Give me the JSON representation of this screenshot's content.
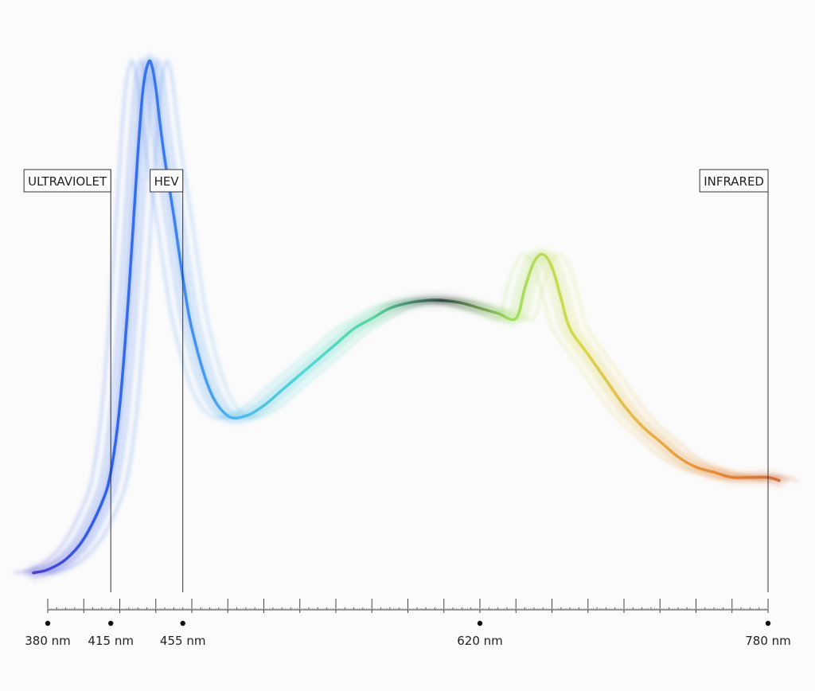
{
  "chart_data": {
    "type": "line",
    "title": "",
    "xlabel": "",
    "ylabel": "",
    "x_unit": "nm",
    "xlim": [
      380,
      780
    ],
    "ylim": [
      0,
      1
    ],
    "grid": false,
    "legend": "none",
    "series": [
      {
        "x": [
          380,
          390,
          400,
          410,
          415,
          420,
          425,
          430,
          433,
          436,
          438,
          440,
          442,
          445,
          450,
          455,
          460,
          470,
          480,
          490,
          500,
          510,
          520,
          530,
          540,
          550,
          560,
          570,
          580,
          590,
          600,
          610,
          620,
          630,
          640,
          645,
          650,
          655,
          660,
          665,
          670,
          680,
          690,
          700,
          710,
          720,
          730,
          740,
          750,
          760,
          770,
          780
        ],
        "y": [
          0.01,
          0.03,
          0.07,
          0.14,
          0.2,
          0.33,
          0.55,
          0.82,
          0.95,
          1.0,
          0.99,
          0.95,
          0.89,
          0.81,
          0.7,
          0.58,
          0.48,
          0.36,
          0.31,
          0.31,
          0.33,
          0.36,
          0.39,
          0.42,
          0.45,
          0.48,
          0.5,
          0.52,
          0.53,
          0.535,
          0.535,
          0.53,
          0.52,
          0.51,
          0.5,
          0.56,
          0.61,
          0.625,
          0.6,
          0.54,
          0.48,
          0.43,
          0.38,
          0.33,
          0.29,
          0.26,
          0.23,
          0.21,
          0.2,
          0.19,
          0.19,
          0.19
        ],
        "gradient_colors": [
          "#4a3fd0",
          "#2f5fe8",
          "#3b7df0",
          "#4fb6ec",
          "#52d8d6",
          "#5ad6a0",
          "#3a4a45",
          "#9ede62",
          "#d8d84a",
          "#e8b04a",
          "#e68a3a",
          "#cf6a3c"
        ]
      }
    ],
    "region_markers": [
      {
        "label": "ULTRAVIOLET",
        "x": 415
      },
      {
        "label": "HEV",
        "x": 455
      },
      {
        "label": "INFRARED",
        "x": 780
      }
    ],
    "tick_labels": [
      {
        "x": 380,
        "label": "380 nm"
      },
      {
        "x": 415,
        "label": "415 nm"
      },
      {
        "x": 455,
        "label": "455 nm"
      },
      {
        "x": 620,
        "label": "620 nm"
      },
      {
        "x": 780,
        "label": "780 nm"
      }
    ],
    "major_ticks_every": 20,
    "minor_ticks_every": 5
  }
}
